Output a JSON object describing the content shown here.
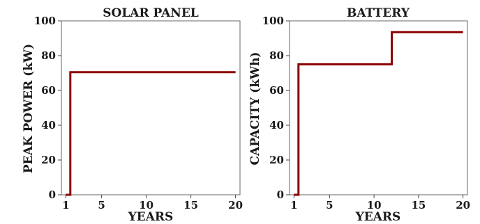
{
  "chart_data": [
    {
      "type": "line",
      "step": true,
      "title": "SOLAR PANEL",
      "xlabel": "YEARS",
      "ylabel": "PEAK POWER (kW)",
      "xlim": [
        0.5,
        20.5
      ],
      "ylim": [
        0,
        100
      ],
      "xticks": [
        1,
        5,
        10,
        15,
        20
      ],
      "yticks": [
        0,
        20,
        40,
        60,
        80,
        100
      ],
      "grid": false,
      "series": [
        {
          "color": "#8b0000",
          "x": [
            1,
            1.5,
            1.5,
            20
          ],
          "values": [
            0,
            0,
            70.5,
            70.5
          ]
        }
      ]
    },
    {
      "type": "line",
      "step": true,
      "title": "BATTERY",
      "xlabel": "YEARS",
      "ylabel": "CAPACITY (kWh)",
      "xlim": [
        0.5,
        20.5
      ],
      "ylim": [
        0,
        100
      ],
      "xticks": [
        1,
        5,
        10,
        15,
        20
      ],
      "yticks": [
        0,
        20,
        40,
        60,
        80,
        100
      ],
      "grid": false,
      "series": [
        {
          "color": "#8b0000",
          "x": [
            1,
            1.5,
            1.5,
            12,
            12,
            20
          ],
          "values": [
            0,
            0,
            75,
            75,
            93.5,
            93.5
          ]
        }
      ]
    }
  ]
}
